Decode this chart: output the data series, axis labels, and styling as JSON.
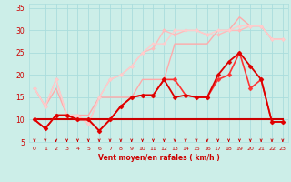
{
  "background_color": "#cceee8",
  "grid_color": "#aadddd",
  "xlabel": "Vent moyen/en rafales ( km/h )",
  "xlim": [
    -0.5,
    23.5
  ],
  "ylim": [
    5,
    36
  ],
  "yticks": [
    5,
    10,
    15,
    20,
    25,
    30,
    35
  ],
  "xticks": [
    0,
    1,
    2,
    3,
    4,
    5,
    6,
    7,
    8,
    9,
    10,
    11,
    12,
    13,
    14,
    15,
    16,
    17,
    18,
    19,
    20,
    21,
    22,
    23
  ],
  "lines": [
    {
      "x": [
        0,
        1,
        2,
        3,
        4,
        5,
        6,
        7,
        8,
        9,
        10,
        11,
        12,
        13,
        14,
        15,
        16,
        17,
        18,
        19,
        20,
        21,
        22,
        23
      ],
      "y": [
        17,
        13,
        17,
        11,
        11,
        11,
        15,
        15,
        15,
        15,
        19,
        19,
        19,
        27,
        27,
        27,
        27,
        30,
        30,
        33,
        31,
        31,
        28,
        28
      ],
      "color": "#ffaaaa",
      "lw": 1.0,
      "marker": null,
      "zorder": 2
    },
    {
      "x": [
        0,
        1,
        2,
        3,
        4,
        5,
        6,
        7,
        8,
        9,
        10,
        11,
        12,
        13,
        14,
        15,
        16,
        17,
        18,
        19,
        20,
        21,
        22,
        23
      ],
      "y": [
        17,
        13,
        19,
        11,
        11,
        9,
        15,
        19,
        20,
        22,
        25,
        26,
        30,
        29,
        30,
        30,
        29,
        29,
        30,
        30,
        31,
        31,
        28,
        28
      ],
      "color": "#ffbbbb",
      "lw": 1.0,
      "marker": "D",
      "markersize": 2.0,
      "zorder": 3
    },
    {
      "x": [
        0,
        1,
        2,
        3,
        4,
        5,
        6,
        7,
        8,
        9,
        10,
        11,
        12,
        13,
        14,
        15,
        16,
        17,
        18,
        19,
        20,
        21,
        22,
        23
      ],
      "y": [
        17,
        13,
        19,
        11,
        11,
        9,
        15,
        19,
        20,
        22,
        25,
        27,
        27,
        30,
        30,
        30,
        29,
        30,
        30,
        31,
        31,
        31,
        28,
        28
      ],
      "color": "#ffcccc",
      "lw": 1.0,
      "marker": "D",
      "markersize": 2.0,
      "zorder": 3
    },
    {
      "x": [
        0,
        1,
        2,
        3,
        4,
        5,
        6,
        7,
        8,
        9,
        10,
        11,
        12,
        13,
        14,
        15,
        16,
        17,
        18,
        19,
        20,
        21,
        22,
        23
      ],
      "y": [
        10,
        8,
        11,
        11,
        10,
        10,
        7.5,
        10,
        13,
        15,
        15.5,
        15.5,
        19,
        19,
        15.5,
        15,
        15,
        19,
        20,
        25,
        17,
        19,
        9.5,
        9.5
      ],
      "color": "#ff3333",
      "lw": 1.2,
      "marker": "D",
      "markersize": 2.5,
      "zorder": 4
    },
    {
      "x": [
        0,
        1,
        2,
        3,
        4,
        5,
        6,
        7,
        8,
        9,
        10,
        11,
        12,
        13,
        14,
        15,
        16,
        17,
        18,
        19,
        20,
        21,
        22,
        23
      ],
      "y": [
        10,
        8,
        11,
        11,
        10,
        10,
        7.5,
        10,
        13,
        15,
        15.5,
        15.5,
        19,
        15,
        15.5,
        15,
        15,
        20,
        23,
        25,
        22,
        19,
        9.5,
        9.5
      ],
      "color": "#dd0000",
      "lw": 1.3,
      "marker": "D",
      "markersize": 2.5,
      "zorder": 5
    },
    {
      "x": [
        0,
        1,
        2,
        3,
        4,
        5,
        6,
        7,
        8,
        9,
        10,
        11,
        12,
        13,
        14,
        15,
        16,
        17,
        18,
        19,
        20,
        21,
        22,
        23
      ],
      "y": [
        10,
        10,
        10,
        10,
        10,
        10,
        10,
        10,
        10,
        10,
        10,
        10,
        10,
        10,
        10,
        10,
        10,
        10,
        10,
        10,
        10,
        10,
        10,
        10
      ],
      "color": "#cc0000",
      "lw": 1.5,
      "marker": null,
      "zorder": 3
    }
  ],
  "tick_color": "#cc0000",
  "label_color": "#cc0000",
  "spine_color": "#aadddd",
  "xlabel_fontsize": 5.5,
  "tick_fontsize_x": 4.5,
  "tick_fontsize_y": 5.5
}
